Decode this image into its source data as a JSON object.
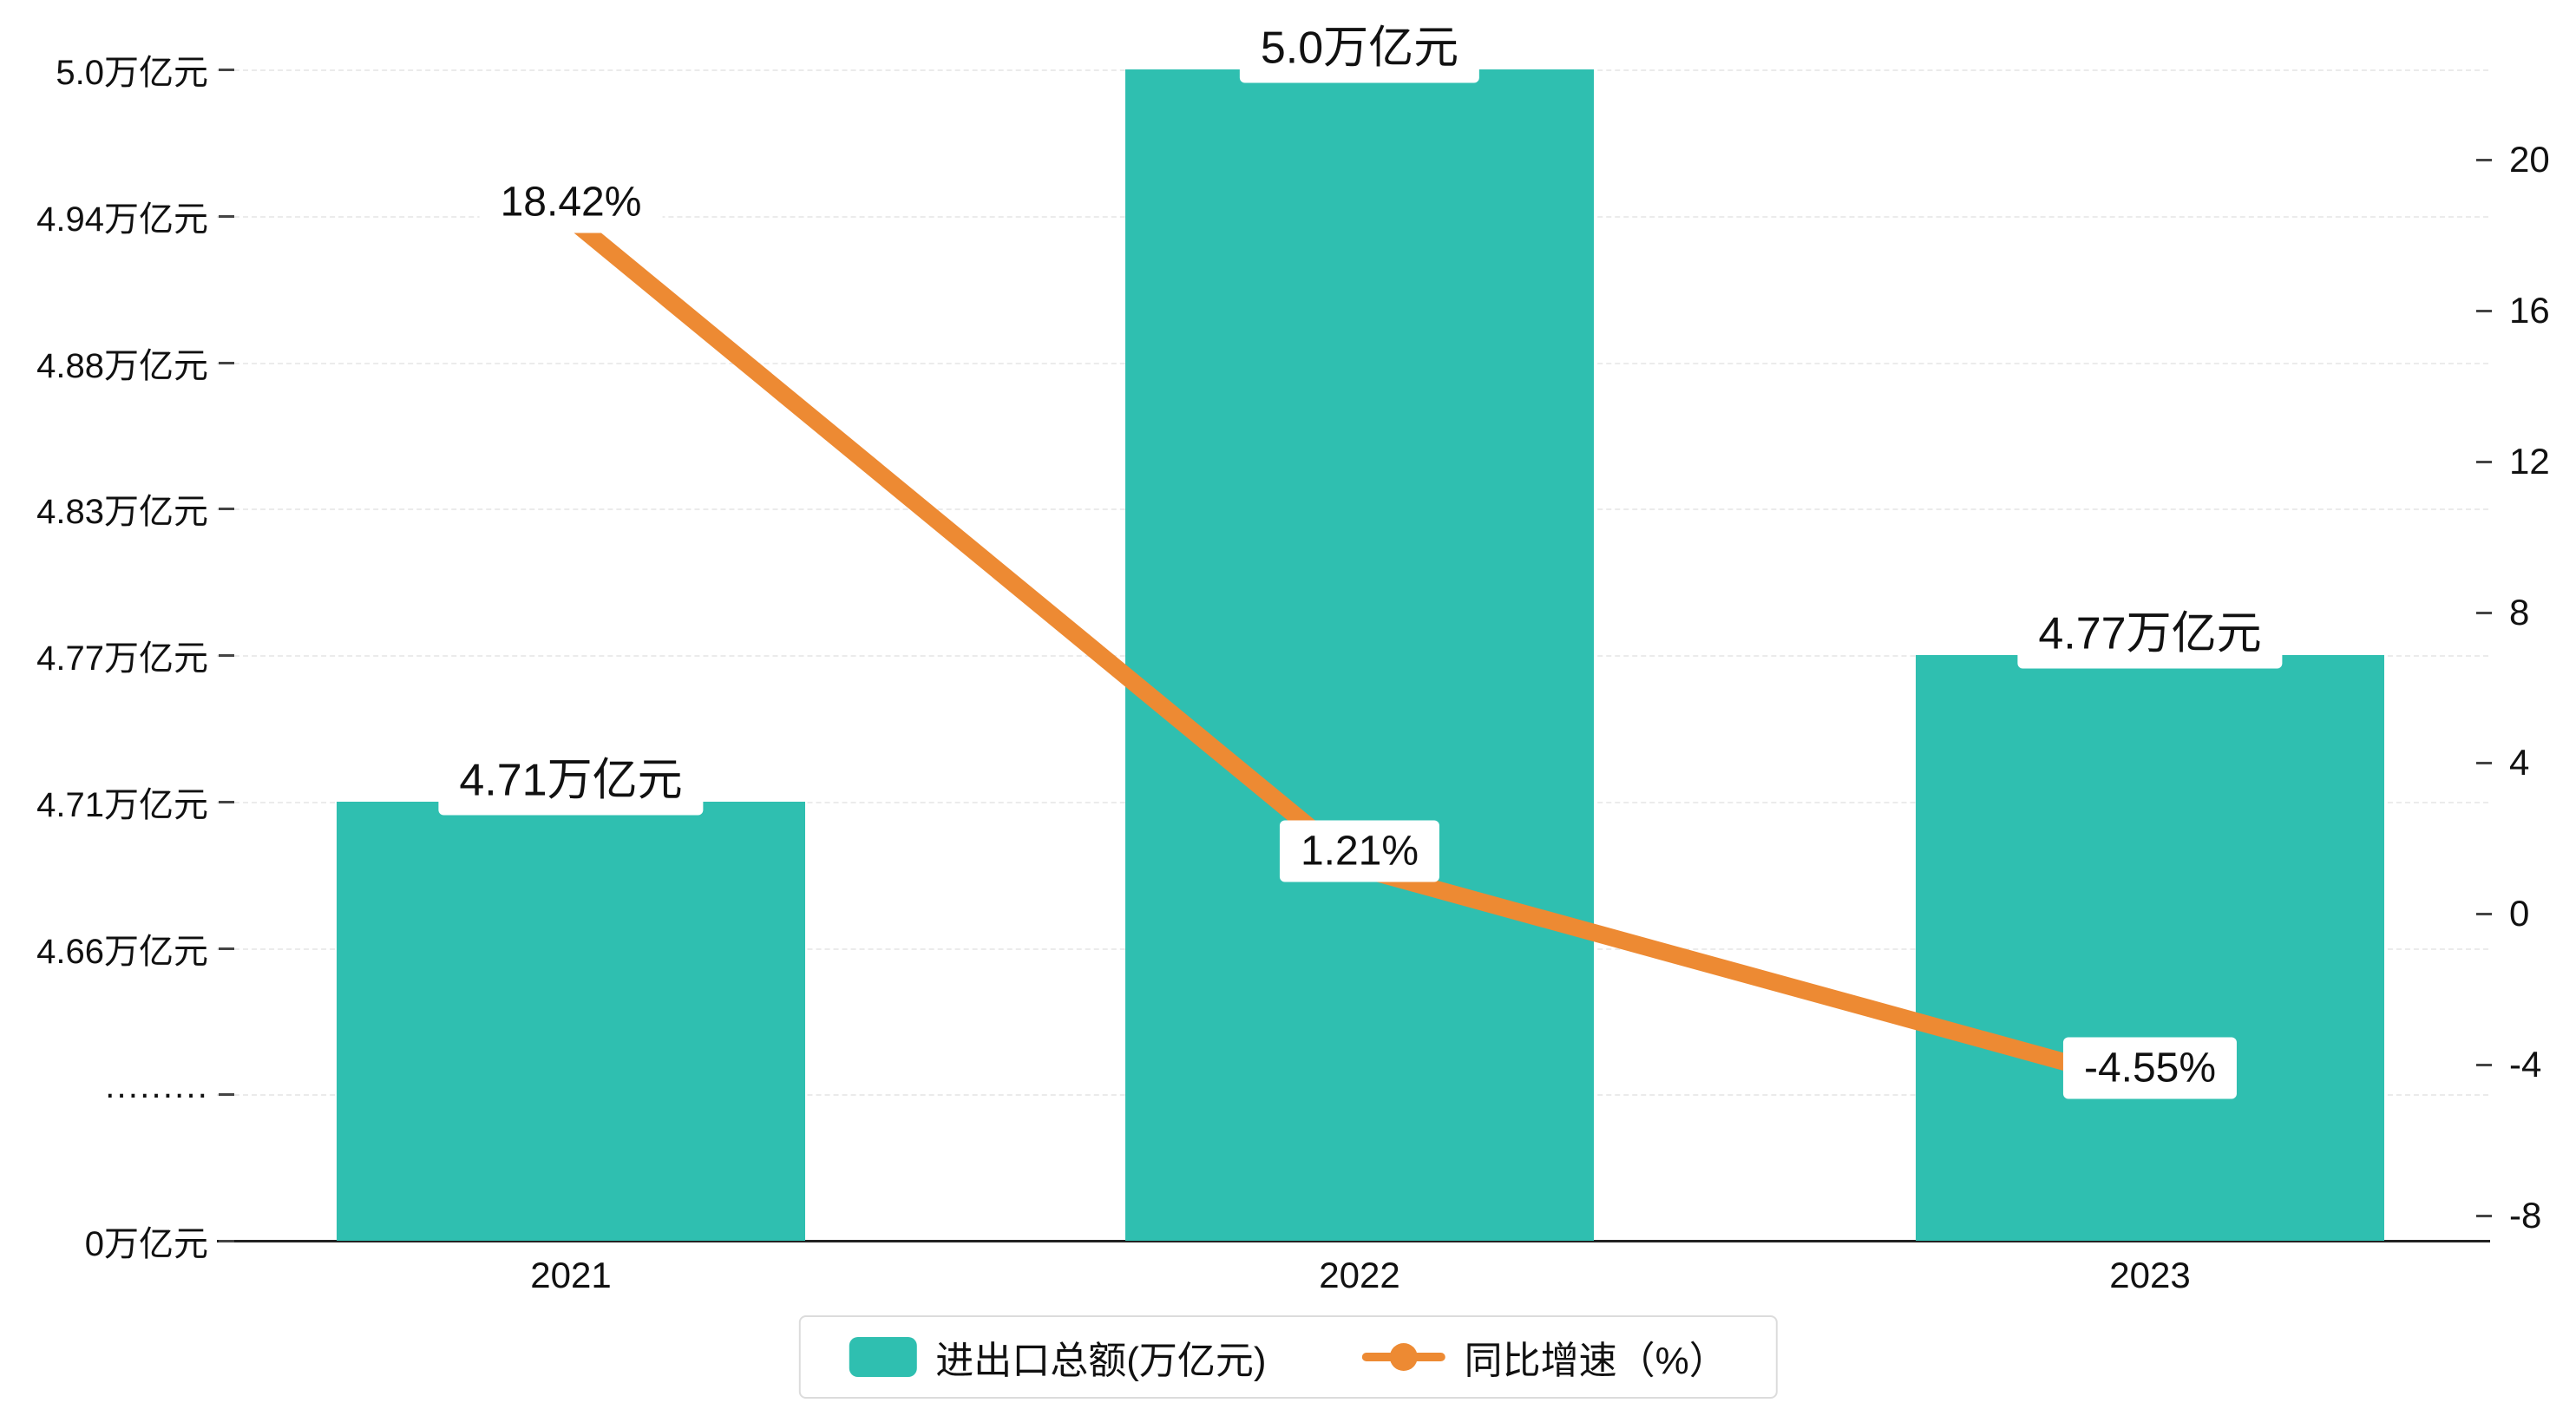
{
  "chart_data": {
    "type": "bar",
    "subtype": "bar+line combo, dual axis",
    "categories": [
      "2021",
      "2022",
      "2023"
    ],
    "series": [
      {
        "name": "进出口总额(万亿元)",
        "type": "bar",
        "axis": "left",
        "values": [
          4.71,
          5.0,
          4.77
        ],
        "labels": [
          "4.71万亿元",
          "5.0万亿元",
          "4.77万亿元"
        ],
        "color": "#2FBFB0"
      },
      {
        "name": "同比增速（%）",
        "type": "line",
        "axis": "right",
        "values": [
          18.42,
          1.21,
          -4.55
        ],
        "labels": [
          "18.42%",
          "1.21%",
          "-4.55%"
        ],
        "color": "#ED8A33"
      }
    ],
    "left_axis": {
      "ticks": [
        {
          "label": "5.0万亿元",
          "value": 5.0
        },
        {
          "label": "4.94万亿元",
          "value": 4.94
        },
        {
          "label": "4.88万亿元",
          "value": 4.88
        },
        {
          "label": "4.83万亿元",
          "value": 4.83
        },
        {
          "label": "4.77万亿元",
          "value": 4.77
        },
        {
          "label": "4.71万亿元",
          "value": 4.71
        },
        {
          "label": "4.66万亿元",
          "value": 4.66
        },
        {
          "label": "·········",
          "value": null
        },
        {
          "label": "0万亿元",
          "value": 0
        }
      ],
      "note": "broken axis between 0 and 4.66 indicated by dotted tick"
    },
    "right_axis": {
      "ticks": [
        20,
        16,
        12,
        8,
        4,
        0,
        -4,
        -8
      ],
      "max": 20,
      "min": -8
    },
    "legend": [
      {
        "label": "进出口总额(万亿元)",
        "marker": "bar-swatch",
        "color": "#2FBFB0"
      },
      {
        "label": "同比增速（%）",
        "marker": "line-dot",
        "color": "#ED8A33"
      }
    ],
    "grid": true,
    "legend_position": "bottom-center",
    "title": ""
  }
}
